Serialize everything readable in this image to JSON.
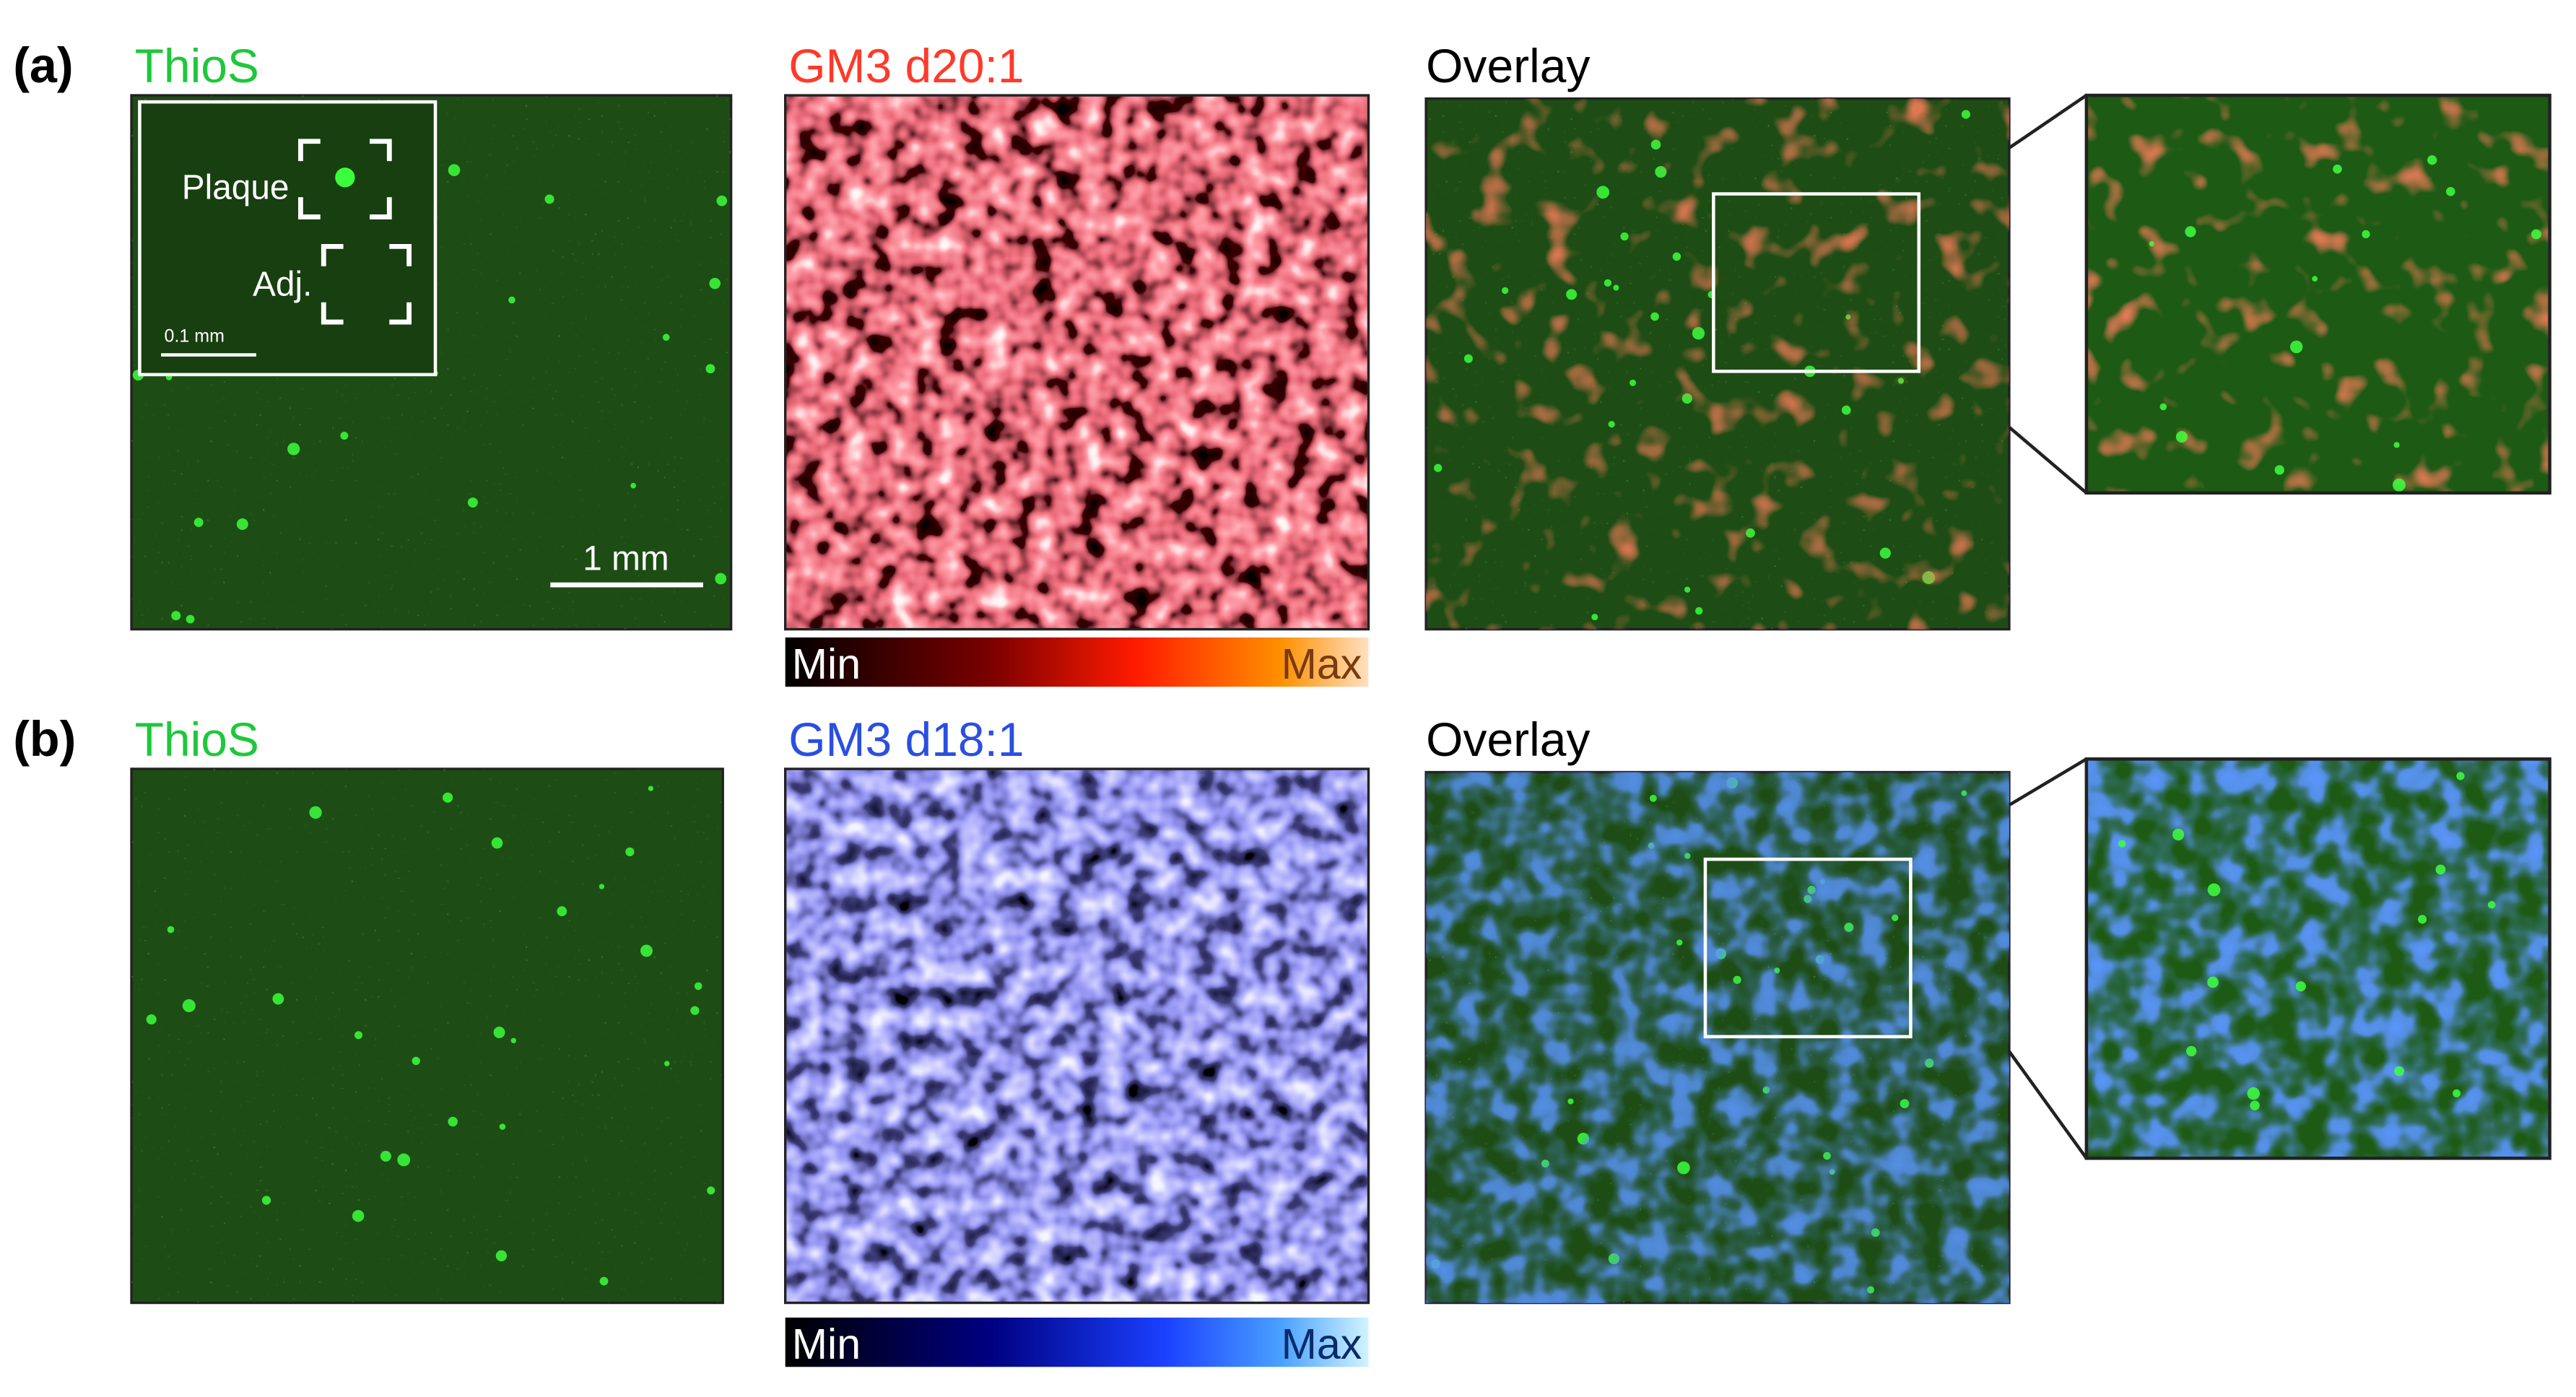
{
  "panels": [
    {
      "label": "(a)",
      "thios": "ThioS",
      "gm3": "GM3 d20:1",
      "overlay": "Overlay",
      "inset": {
        "plaque": "Plaque",
        "adj": "Adj.",
        "scale": "0.1 mm"
      },
      "scale_bar": "1 mm",
      "colorbar": {
        "min": "Min",
        "max": "Max"
      }
    },
    {
      "label": "(b)",
      "thios": "ThioS",
      "gm3": "GM3 d18:1",
      "overlay": "Overlay",
      "colorbar": {
        "min": "Min",
        "max": "Max"
      }
    }
  ]
}
